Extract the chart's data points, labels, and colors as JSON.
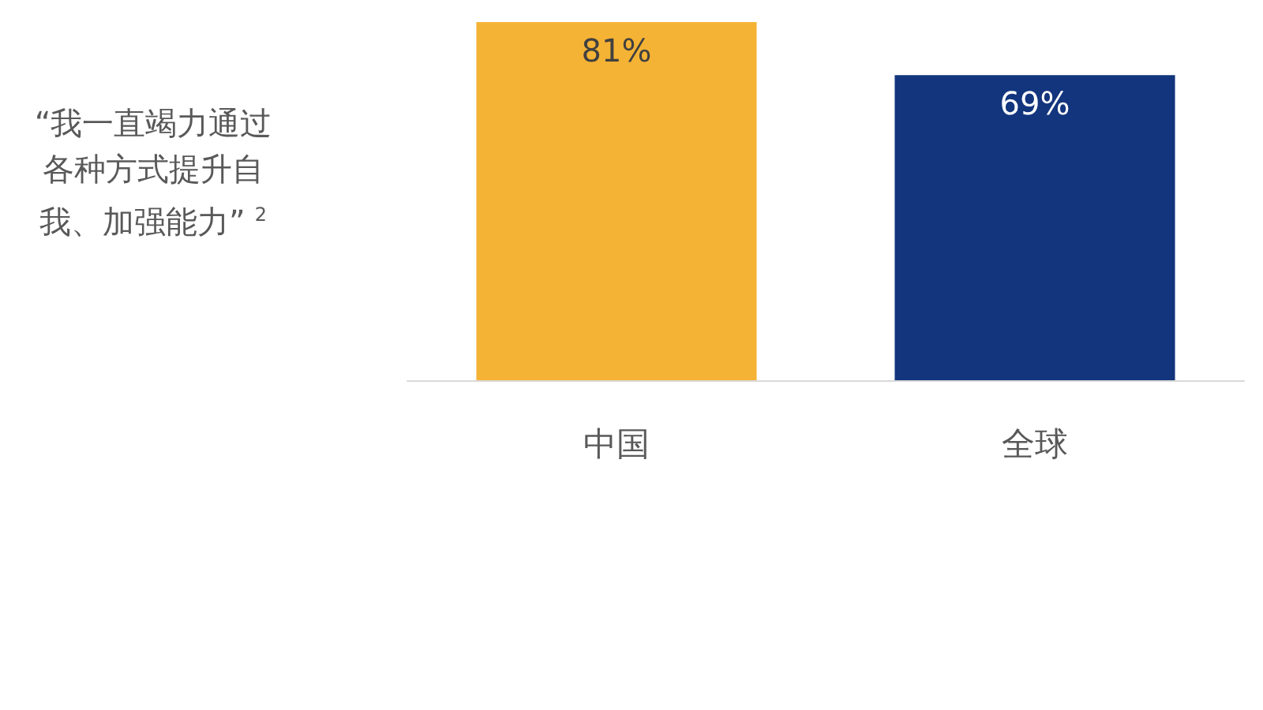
{
  "chart_data": {
    "type": "bar",
    "title": "“我一直竭力通过各种方式提升自我、加强能力”$^{2}$",
    "categories": [
      "中国",
      "全球"
    ],
    "values": [
      81,
      69
    ],
    "colors": [
      "#f5b335",
      "#12357d"
    ],
    "value_labels": [
      "81%",
      "69%"
    ]
  }
}
